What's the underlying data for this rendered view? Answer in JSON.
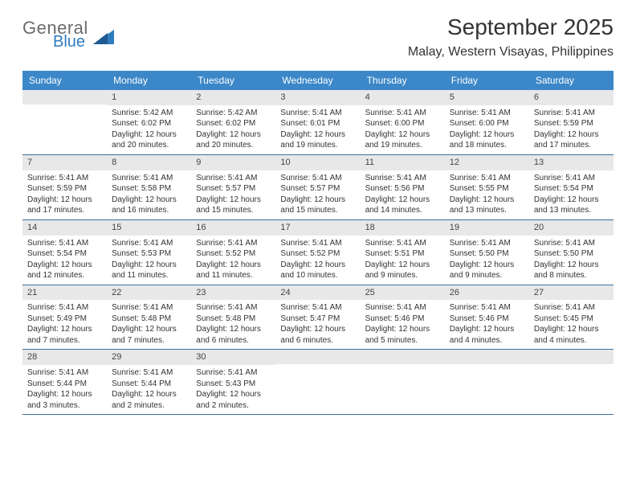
{
  "logo": {
    "line1": "General",
    "line2": "Blue"
  },
  "title": "September 2025",
  "location": "Malay, Western Visayas, Philippines",
  "colors": {
    "header_bg": "#3b87c8",
    "header_text": "#ffffff",
    "daynum_bg": "#e8e8e8",
    "week_border": "#3b6fa0",
    "logo_gray": "#6b6b6b",
    "logo_blue": "#2f7bbf",
    "text": "#333333"
  },
  "fonts": {
    "title_size": 28,
    "location_size": 16,
    "dow_size": 12,
    "cell_size": 10
  },
  "dow": [
    "Sunday",
    "Monday",
    "Tuesday",
    "Wednesday",
    "Thursday",
    "Friday",
    "Saturday"
  ],
  "weeks": [
    [
      {
        "day": "",
        "lines": []
      },
      {
        "day": "1",
        "lines": [
          "Sunrise: 5:42 AM",
          "Sunset: 6:02 PM",
          "Daylight: 12 hours and 20 minutes."
        ]
      },
      {
        "day": "2",
        "lines": [
          "Sunrise: 5:42 AM",
          "Sunset: 6:02 PM",
          "Daylight: 12 hours and 20 minutes."
        ]
      },
      {
        "day": "3",
        "lines": [
          "Sunrise: 5:41 AM",
          "Sunset: 6:01 PM",
          "Daylight: 12 hours and 19 minutes."
        ]
      },
      {
        "day": "4",
        "lines": [
          "Sunrise: 5:41 AM",
          "Sunset: 6:00 PM",
          "Daylight: 12 hours and 19 minutes."
        ]
      },
      {
        "day": "5",
        "lines": [
          "Sunrise: 5:41 AM",
          "Sunset: 6:00 PM",
          "Daylight: 12 hours and 18 minutes."
        ]
      },
      {
        "day": "6",
        "lines": [
          "Sunrise: 5:41 AM",
          "Sunset: 5:59 PM",
          "Daylight: 12 hours and 17 minutes."
        ]
      }
    ],
    [
      {
        "day": "7",
        "lines": [
          "Sunrise: 5:41 AM",
          "Sunset: 5:59 PM",
          "Daylight: 12 hours and 17 minutes."
        ]
      },
      {
        "day": "8",
        "lines": [
          "Sunrise: 5:41 AM",
          "Sunset: 5:58 PM",
          "Daylight: 12 hours and 16 minutes."
        ]
      },
      {
        "day": "9",
        "lines": [
          "Sunrise: 5:41 AM",
          "Sunset: 5:57 PM",
          "Daylight: 12 hours and 15 minutes."
        ]
      },
      {
        "day": "10",
        "lines": [
          "Sunrise: 5:41 AM",
          "Sunset: 5:57 PM",
          "Daylight: 12 hours and 15 minutes."
        ]
      },
      {
        "day": "11",
        "lines": [
          "Sunrise: 5:41 AM",
          "Sunset: 5:56 PM",
          "Daylight: 12 hours and 14 minutes."
        ]
      },
      {
        "day": "12",
        "lines": [
          "Sunrise: 5:41 AM",
          "Sunset: 5:55 PM",
          "Daylight: 12 hours and 13 minutes."
        ]
      },
      {
        "day": "13",
        "lines": [
          "Sunrise: 5:41 AM",
          "Sunset: 5:54 PM",
          "Daylight: 12 hours and 13 minutes."
        ]
      }
    ],
    [
      {
        "day": "14",
        "lines": [
          "Sunrise: 5:41 AM",
          "Sunset: 5:54 PM",
          "Daylight: 12 hours and 12 minutes."
        ]
      },
      {
        "day": "15",
        "lines": [
          "Sunrise: 5:41 AM",
          "Sunset: 5:53 PM",
          "Daylight: 12 hours and 11 minutes."
        ]
      },
      {
        "day": "16",
        "lines": [
          "Sunrise: 5:41 AM",
          "Sunset: 5:52 PM",
          "Daylight: 12 hours and 11 minutes."
        ]
      },
      {
        "day": "17",
        "lines": [
          "Sunrise: 5:41 AM",
          "Sunset: 5:52 PM",
          "Daylight: 12 hours and 10 minutes."
        ]
      },
      {
        "day": "18",
        "lines": [
          "Sunrise: 5:41 AM",
          "Sunset: 5:51 PM",
          "Daylight: 12 hours and 9 minutes."
        ]
      },
      {
        "day": "19",
        "lines": [
          "Sunrise: 5:41 AM",
          "Sunset: 5:50 PM",
          "Daylight: 12 hours and 9 minutes."
        ]
      },
      {
        "day": "20",
        "lines": [
          "Sunrise: 5:41 AM",
          "Sunset: 5:50 PM",
          "Daylight: 12 hours and 8 minutes."
        ]
      }
    ],
    [
      {
        "day": "21",
        "lines": [
          "Sunrise: 5:41 AM",
          "Sunset: 5:49 PM",
          "Daylight: 12 hours and 7 minutes."
        ]
      },
      {
        "day": "22",
        "lines": [
          "Sunrise: 5:41 AM",
          "Sunset: 5:48 PM",
          "Daylight: 12 hours and 7 minutes."
        ]
      },
      {
        "day": "23",
        "lines": [
          "Sunrise: 5:41 AM",
          "Sunset: 5:48 PM",
          "Daylight: 12 hours and 6 minutes."
        ]
      },
      {
        "day": "24",
        "lines": [
          "Sunrise: 5:41 AM",
          "Sunset: 5:47 PM",
          "Daylight: 12 hours and 6 minutes."
        ]
      },
      {
        "day": "25",
        "lines": [
          "Sunrise: 5:41 AM",
          "Sunset: 5:46 PM",
          "Daylight: 12 hours and 5 minutes."
        ]
      },
      {
        "day": "26",
        "lines": [
          "Sunrise: 5:41 AM",
          "Sunset: 5:46 PM",
          "Daylight: 12 hours and 4 minutes."
        ]
      },
      {
        "day": "27",
        "lines": [
          "Sunrise: 5:41 AM",
          "Sunset: 5:45 PM",
          "Daylight: 12 hours and 4 minutes."
        ]
      }
    ],
    [
      {
        "day": "28",
        "lines": [
          "Sunrise: 5:41 AM",
          "Sunset: 5:44 PM",
          "Daylight: 12 hours and 3 minutes."
        ]
      },
      {
        "day": "29",
        "lines": [
          "Sunrise: 5:41 AM",
          "Sunset: 5:44 PM",
          "Daylight: 12 hours and 2 minutes."
        ]
      },
      {
        "day": "30",
        "lines": [
          "Sunrise: 5:41 AM",
          "Sunset: 5:43 PM",
          "Daylight: 12 hours and 2 minutes."
        ]
      },
      {
        "day": "",
        "lines": []
      },
      {
        "day": "",
        "lines": []
      },
      {
        "day": "",
        "lines": []
      },
      {
        "day": "",
        "lines": []
      }
    ]
  ]
}
